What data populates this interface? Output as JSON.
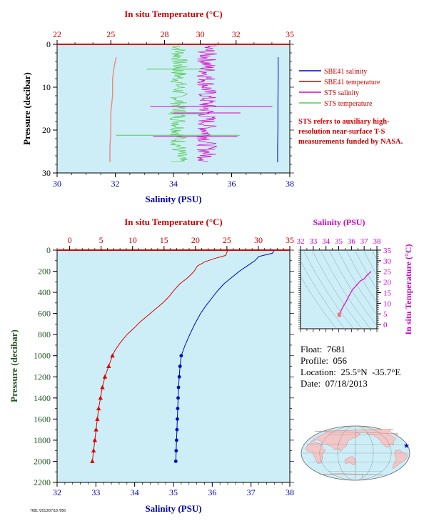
{
  "colors": {
    "plot_bg": "#cdeef7",
    "temperature": "#dd0000",
    "salinity": "#0000cc",
    "sts_salinity": "#dd00cc",
    "sts_temperature": "#55cc55",
    "light_temp": "#ee8877",
    "axis_black": "#000000",
    "axis_red": "#cc0000",
    "axis_blue": "#0000aa",
    "axis_green": "#225522",
    "axis_magenta": "#cc00cc"
  },
  "chart_data": [
    {
      "type": "line",
      "id": "top-profile",
      "top_axis": {
        "label": "In situ Temperature (°C)",
        "ticks": [
          22,
          25,
          28,
          30,
          32,
          35
        ],
        "range": [
          22,
          35
        ]
      },
      "bottom_axis": {
        "label": "Salinity (PSU)",
        "ticks": [
          30,
          32,
          34,
          36,
          38
        ],
        "range": [
          30,
          38
        ]
      },
      "left_axis": {
        "label": "Pressure (decibar)",
        "ticks": [
          0,
          10,
          20,
          30
        ],
        "range": [
          0,
          30
        ]
      },
      "legend": [
        {
          "name": "SBE41 salinity",
          "color": "#0000cc"
        },
        {
          "name": "SBE41 temperature",
          "color": "#dd0000"
        },
        {
          "name": "STS salinity",
          "color": "#dd00cc"
        },
        {
          "name": "STS temperature",
          "color": "#55cc55"
        }
      ],
      "note": "STS refers to auxiliary high-resolution near-surface T-S measurements funded by NASA.",
      "series": [
        {
          "name": "SBE41 salinity",
          "axis": "salinity",
          "points": [
            [
              37.6,
              3
            ],
            [
              37.6,
              8
            ],
            [
              37.59,
              14
            ],
            [
              37.59,
              20
            ],
            [
              37.58,
              24
            ],
            [
              37.58,
              27.5
            ]
          ]
        },
        {
          "name": "SBE41 temperature",
          "axis": "temperature",
          "points": [
            [
              25.3,
              3
            ],
            [
              25.2,
              5
            ],
            [
              25.1,
              8
            ],
            [
              25.1,
              12
            ],
            [
              25.0,
              16
            ],
            [
              25.0,
              20
            ],
            [
              24.95,
              24
            ],
            [
              24.95,
              27.5
            ]
          ]
        },
        {
          "name": "STS salinity",
          "axis": "salinity",
          "center": 35.15,
          "amp": 0.35,
          "range": [
            0.3,
            27.5
          ],
          "spikes": [
            [
              14.5,
              33.2,
              37.4
            ],
            [
              16.0,
              34.0,
              36.3
            ],
            [
              21.5,
              33.3,
              36.2
            ]
          ]
        },
        {
          "name": "STS temperature",
          "axis": "temperature",
          "center": 28.8,
          "amp": 0.5,
          "range": [
            0.3,
            27.5
          ],
          "spikes": [
            [
              5.8,
              27.0,
              30.5
            ],
            [
              14.5,
              27.2,
              32.5
            ],
            [
              16.2,
              28.2,
              30.2
            ],
            [
              21.2,
              25.3,
              32.2
            ]
          ]
        }
      ]
    },
    {
      "type": "line",
      "id": "main-profile",
      "top_axis": {
        "label": "In situ Temperature (°C)",
        "ticks": [
          0,
          5,
          10,
          15,
          20,
          25,
          30,
          35
        ],
        "range": [
          -2,
          35
        ]
      },
      "bottom_axis": {
        "label": "Salinity (PSU)",
        "ticks": [
          32,
          33,
          34,
          35,
          36,
          37,
          38
        ],
        "range": [
          32,
          38
        ]
      },
      "left_axis": {
        "label": "Pressure (decibar)",
        "ticks": [
          0,
          200,
          400,
          600,
          800,
          1000,
          1200,
          1400,
          1600,
          1800,
          2000,
          2200
        ],
        "range": [
          0,
          2200
        ]
      },
      "series": [
        {
          "name": "Temperature",
          "axis": "temperature",
          "color": "#dd0000",
          "points": [
            [
              25.1,
              0
            ],
            [
              25.0,
              20
            ],
            [
              24.8,
              50
            ],
            [
              23.0,
              80
            ],
            [
              21.5,
              110
            ],
            [
              20.3,
              150
            ],
            [
              19.8,
              200
            ],
            [
              18.8,
              260
            ],
            [
              17.5,
              320
            ],
            [
              16.6,
              380
            ],
            [
              15.8,
              440
            ],
            [
              14.8,
              500
            ],
            [
              13.6,
              560
            ],
            [
              12.4,
              620
            ],
            [
              11.2,
              680
            ],
            [
              10.2,
              740
            ],
            [
              9.1,
              800
            ],
            [
              8.0,
              880
            ],
            [
              7.2,
              950
            ],
            [
              6.8,
              1000
            ],
            [
              6.2,
              1100
            ],
            [
              5.6,
              1200
            ],
            [
              5.2,
              1300
            ],
            [
              4.9,
              1400
            ],
            [
              4.6,
              1500
            ],
            [
              4.4,
              1600
            ],
            [
              4.2,
              1700
            ],
            [
              4.0,
              1800
            ],
            [
              3.8,
              1900
            ],
            [
              3.6,
              2000
            ]
          ],
          "marked_from": 1000
        },
        {
          "name": "Salinity",
          "axis": "salinity",
          "color": "#0000cc",
          "points": [
            [
              37.6,
              0
            ],
            [
              37.55,
              30
            ],
            [
              37.2,
              60
            ],
            [
              37.1,
              100
            ],
            [
              36.9,
              150
            ],
            [
              36.7,
              200
            ],
            [
              36.5,
              260
            ],
            [
              36.3,
              320
            ],
            [
              36.15,
              380
            ],
            [
              36.0,
              450
            ],
            [
              35.85,
              520
            ],
            [
              35.7,
              600
            ],
            [
              35.55,
              700
            ],
            [
              35.42,
              800
            ],
            [
              35.3,
              900
            ],
            [
              35.2,
              1000
            ],
            [
              35.17,
              1100
            ],
            [
              35.15,
              1200
            ],
            [
              35.13,
              1300
            ],
            [
              35.12,
              1400
            ],
            [
              35.11,
              1500
            ],
            [
              35.1,
              1600
            ],
            [
              35.09,
              1700
            ],
            [
              35.08,
              1800
            ],
            [
              35.07,
              1900
            ],
            [
              35.06,
              2000
            ]
          ],
          "marked_from": 1000
        }
      ]
    },
    {
      "type": "scatter",
      "id": "ts-diagram",
      "top_axis": {
        "label": "Salinity (PSU)",
        "ticks": [
          32,
          33,
          34,
          35,
          36,
          37,
          38
        ],
        "range": [
          32,
          38
        ]
      },
      "right_axis": {
        "label": "In situ Temperature (°C)",
        "ticks": [
          0,
          5,
          10,
          15,
          20,
          25,
          30,
          35
        ],
        "range": [
          -2,
          35
        ]
      },
      "series": [
        {
          "name": "T-S",
          "color": "#dd00cc",
          "points": [
            [
              35.06,
              3.6
            ],
            [
              35.1,
              4.5
            ],
            [
              35.15,
              5.5
            ],
            [
              35.2,
              6.8
            ],
            [
              35.4,
              9.0
            ],
            [
              35.6,
              11.0
            ],
            [
              35.85,
              14.0
            ],
            [
              36.1,
              16.5
            ],
            [
              36.4,
              18.5
            ],
            [
              36.7,
              20.5
            ],
            [
              37.0,
              21.5
            ],
            [
              37.2,
              23.0
            ],
            [
              37.55,
              25.0
            ]
          ]
        }
      ]
    }
  ],
  "float_info": {
    "float": "Float:  7681",
    "profile": "Profile:  056",
    "location": "Location:  25.5°N  -35.7°E",
    "date": "Date:  07/18/2013"
  },
  "map": {
    "marker_lat": 25.5,
    "marker_lon": -35.7,
    "marker_color": "#0000cc"
  },
  "footer_code": "7681 /2013/07/18 /056"
}
